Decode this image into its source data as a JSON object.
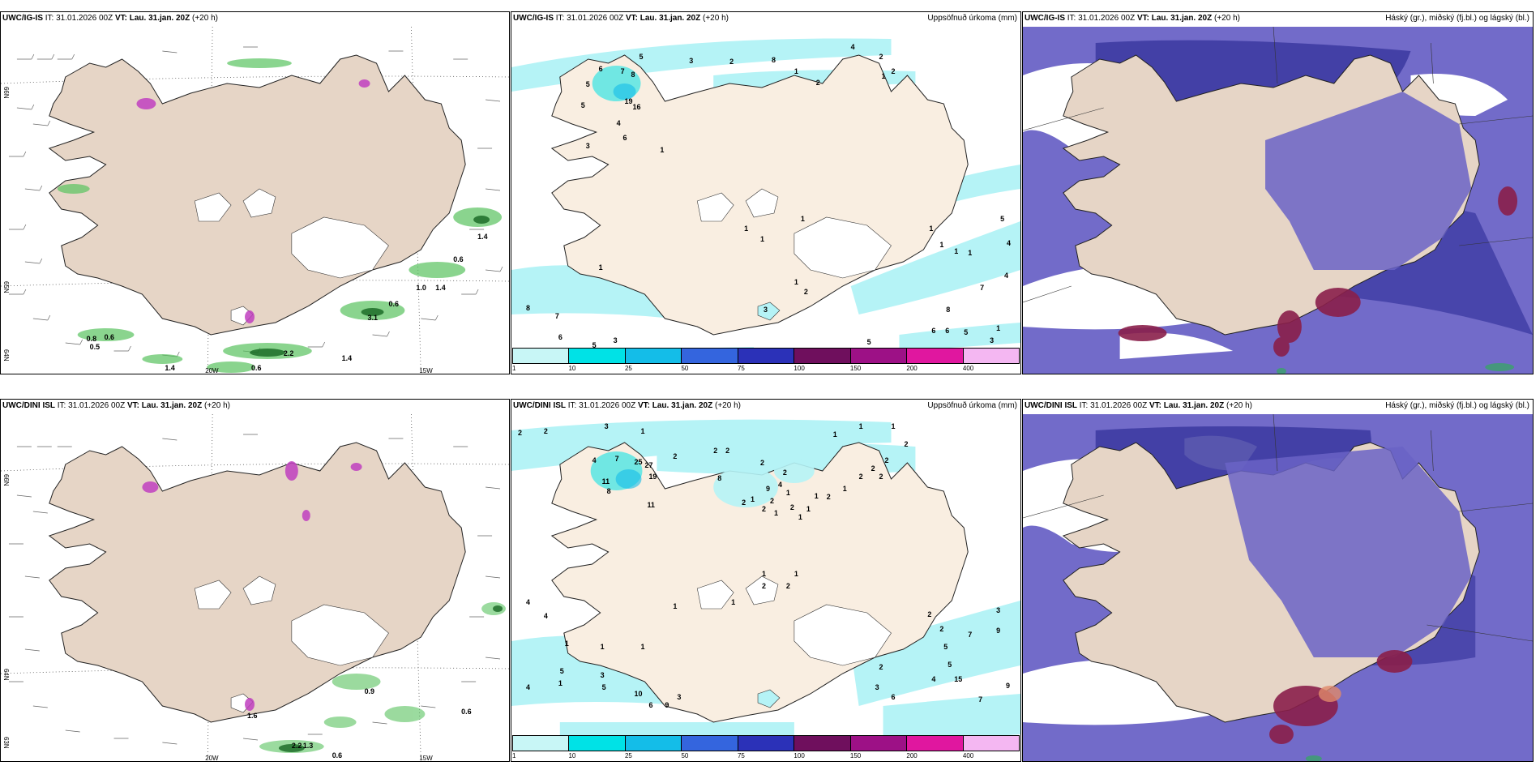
{
  "rows": [
    {
      "model": "UWC/IG-IS",
      "it_label": "IT:",
      "it_value": "31.01.2026 00Z",
      "vt_label": "VT:",
      "vt_value": "Lau. 31.jan. 20Z",
      "lead": "(+20 h)",
      "precip_title": "Uppsöfnuð úrkoma (mm)",
      "cloud_title": "Háský (gr.), miðský (fj.bl.) og lágský (bl.)",
      "wind_values": [
        "0.8",
        "0.6",
        "0.5",
        "1.4",
        "2.2",
        "0.6",
        "1.4",
        "3.1",
        "0.6",
        "1.0",
        "1.4",
        "0.6",
        "1.4"
      ],
      "lat_labels": [
        "66N",
        "65N",
        "64N"
      ],
      "lon_labels": [
        "20W",
        "15W"
      ],
      "precip_numbers": [
        "3",
        "2",
        "8",
        "4",
        "1",
        "2",
        "5",
        "7",
        "6",
        "8",
        "16",
        "19",
        "5",
        "4",
        "6",
        "1",
        "3",
        "5",
        "1",
        "1",
        "1",
        "2",
        "1",
        "1",
        "1",
        "1",
        "1",
        "5",
        "4",
        "7",
        "4",
        "8",
        "6",
        "6",
        "5",
        "3",
        "1",
        "5",
        "8",
        "7",
        "6",
        "5",
        "3",
        "3",
        "1",
        "3",
        "2",
        "1",
        "2"
      ]
    },
    {
      "model": "UWC/DINI ISL",
      "it_label": "IT:",
      "it_value": "31.01.2026 00Z",
      "vt_label": "VT:",
      "vt_value": "Lau. 31.jan. 20Z",
      "lead": "(+20 h)",
      "precip_title": "Uppsöfnuð úrkoma (mm)",
      "cloud_title": "Háský (gr.), miðský (fj.bl.) og lágský (bl.)",
      "wind_values": [
        "0.9",
        "0.6",
        "2.2",
        "1.3",
        "0.6",
        "1.6"
      ],
      "lat_labels": [
        "66N",
        "64N",
        "63N"
      ],
      "lon_labels": [
        "20W",
        "15W"
      ],
      "precip_numbers": [
        "2",
        "2",
        "3",
        "1",
        "4",
        "7",
        "25",
        "27",
        "19",
        "11",
        "8",
        "11",
        "2",
        "2",
        "2",
        "8",
        "2",
        "9",
        "4",
        "2",
        "1",
        "2",
        "1",
        "2",
        "2",
        "1",
        "2",
        "1",
        "1",
        "1",
        "2",
        "1",
        "2",
        "2",
        "2",
        "2",
        "1",
        "1",
        "1",
        "2",
        "1",
        "1",
        "2",
        "2",
        "1",
        "4",
        "1",
        "5",
        "3",
        "5",
        "10",
        "6",
        "9",
        "3",
        "4",
        "4",
        "1",
        "1",
        "1",
        "1",
        "2",
        "2",
        "5",
        "7",
        "3",
        "9",
        "5",
        "15",
        "4",
        "2",
        "3",
        "6",
        "9",
        "7"
      ]
    }
  ],
  "colorbar": {
    "labels": [
      "1",
      "10",
      "25",
      "50",
      "75",
      "100",
      "150",
      "200",
      "400"
    ],
    "colors": [
      "#c8f6f6",
      "#00e2e6",
      "#14bde8",
      "#3465de",
      "#2b31b8",
      "#6f0f5d",
      "#9d1186",
      "#e0179f",
      "#f4b7f2"
    ]
  },
  "colors": {
    "land": "#e6d5c6",
    "land_precip": "#f9eee1",
    "precip_light": "#b5f3f6",
    "high_cloud": "#6a63c6",
    "mid_cloud": "#3b38a0",
    "low_cloud": "#8a1f4a",
    "green_wind": "#2f9b3a"
  }
}
